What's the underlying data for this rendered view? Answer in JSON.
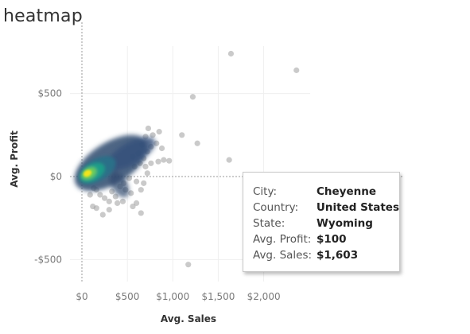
{
  "title": "heatmap",
  "chart_data": {
    "type": "scatter",
    "style": "density-heatmap",
    "xlabel": "Avg. Sales",
    "ylabel": "Avg. Profit",
    "x_ticks": [
      "$0",
      "$500",
      "$1,000",
      "$1,500",
      "$2,000"
    ],
    "x_tick_values": [
      0,
      500,
      1000,
      1500,
      2000
    ],
    "y_ticks": [
      "$500",
      "$0",
      "-$500"
    ],
    "y_tick_values": [
      500,
      0,
      -500
    ],
    "xlim": [
      -150,
      2500
    ],
    "ylim": [
      -620,
      780
    ],
    "grid": true,
    "colors": {
      "outlier": "#9e9e9e",
      "density_low": "#2f4a6e",
      "density_mid": "#1f9e89",
      "density_high": "#f2e41c"
    },
    "points": [
      [
        1640,
        740
      ],
      [
        2360,
        640
      ],
      [
        1220,
        480
      ],
      [
        1100,
        250
      ],
      [
        1270,
        200
      ],
      [
        1620,
        100
      ],
      [
        730,
        290
      ],
      [
        850,
        270
      ],
      [
        780,
        250
      ],
      [
        700,
        240
      ],
      [
        820,
        200
      ],
      [
        760,
        180
      ],
      [
        880,
        170
      ],
      [
        660,
        190
      ],
      [
        720,
        150
      ],
      [
        900,
        100
      ],
      [
        840,
        90
      ],
      [
        960,
        95
      ],
      [
        620,
        140
      ],
      [
        680,
        110
      ],
      [
        640,
        80
      ],
      [
        760,
        80
      ],
      [
        560,
        120
      ],
      [
        580,
        60
      ],
      [
        700,
        60
      ],
      [
        520,
        -10
      ],
      [
        600,
        -30
      ],
      [
        460,
        -40
      ],
      [
        720,
        20
      ],
      [
        680,
        -40
      ],
      [
        650,
        -80
      ],
      [
        540,
        -100
      ],
      [
        480,
        -80
      ],
      [
        420,
        -60
      ],
      [
        370,
        -120
      ],
      [
        330,
        -90
      ],
      [
        300,
        -150
      ],
      [
        250,
        -130
      ],
      [
        200,
        -110
      ],
      [
        160,
        -80
      ],
      [
        130,
        -70
      ],
      [
        560,
        -180
      ],
      [
        600,
        -160
      ],
      [
        650,
        -220
      ],
      [
        300,
        -200
      ],
      [
        230,
        -230
      ],
      [
        120,
        -180
      ],
      [
        160,
        -190
      ],
      [
        90,
        -110
      ],
      [
        450,
        -150
      ],
      [
        390,
        -160
      ],
      [
        1170,
        -530
      ]
    ],
    "tooltip": {
      "rows": [
        {
          "label": "City:",
          "value": "Cheyenne"
        },
        {
          "label": "Country:",
          "value": "United States"
        },
        {
          "label": "State:",
          "value": "Wyoming"
        },
        {
          "label": "Avg. Profit:",
          "value": "$100"
        },
        {
          "label": "Avg. Sales:",
          "value": "$1,603"
        }
      ]
    }
  }
}
